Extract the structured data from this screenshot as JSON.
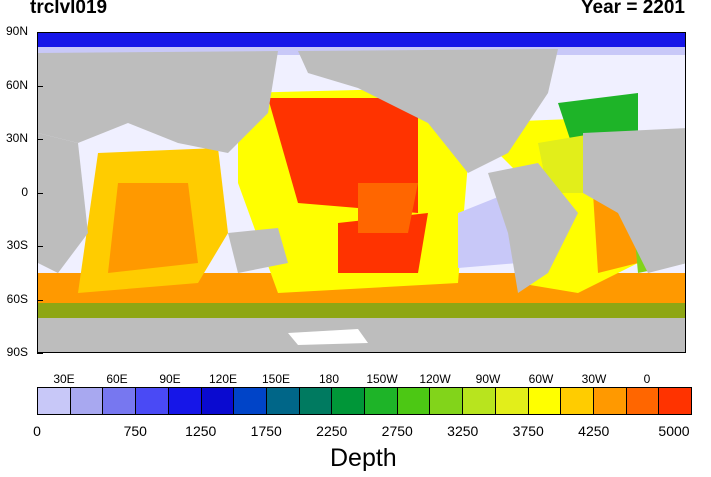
{
  "header": {
    "variable": "trclvl019",
    "year_label": "Year = 2201"
  },
  "map": {
    "lat_labels": [
      "90N",
      "60N",
      "30N",
      "0",
      "30S",
      "60S",
      "90S"
    ],
    "lon_labels": [
      "30E",
      "60E",
      "90E",
      "120E",
      "150E",
      "180",
      "150W",
      "120W",
      "90W",
      "60W",
      "30W",
      "0"
    ]
  },
  "colorbar": {
    "title": "Depth",
    "tick_labels": [
      "0",
      "750",
      "1250",
      "1750",
      "2250",
      "2750",
      "3250",
      "3750",
      "4250",
      "5000"
    ],
    "colors": [
      "#c8c8f8",
      "#a8a8f0",
      "#7777f0",
      "#4a4af5",
      "#1616e8",
      "#0a0ad0",
      "#0044c8",
      "#006688",
      "#007a60",
      "#009638",
      "#1eb428",
      "#4cc814",
      "#82d41a",
      "#b8e41e",
      "#e2ee1a",
      "#ffff00",
      "#ffcc00",
      "#ff9900",
      "#ff6600",
      "#ff3300"
    ]
  },
  "colors": {
    "land": "#bdbdbd",
    "background": "#ffffff"
  }
}
